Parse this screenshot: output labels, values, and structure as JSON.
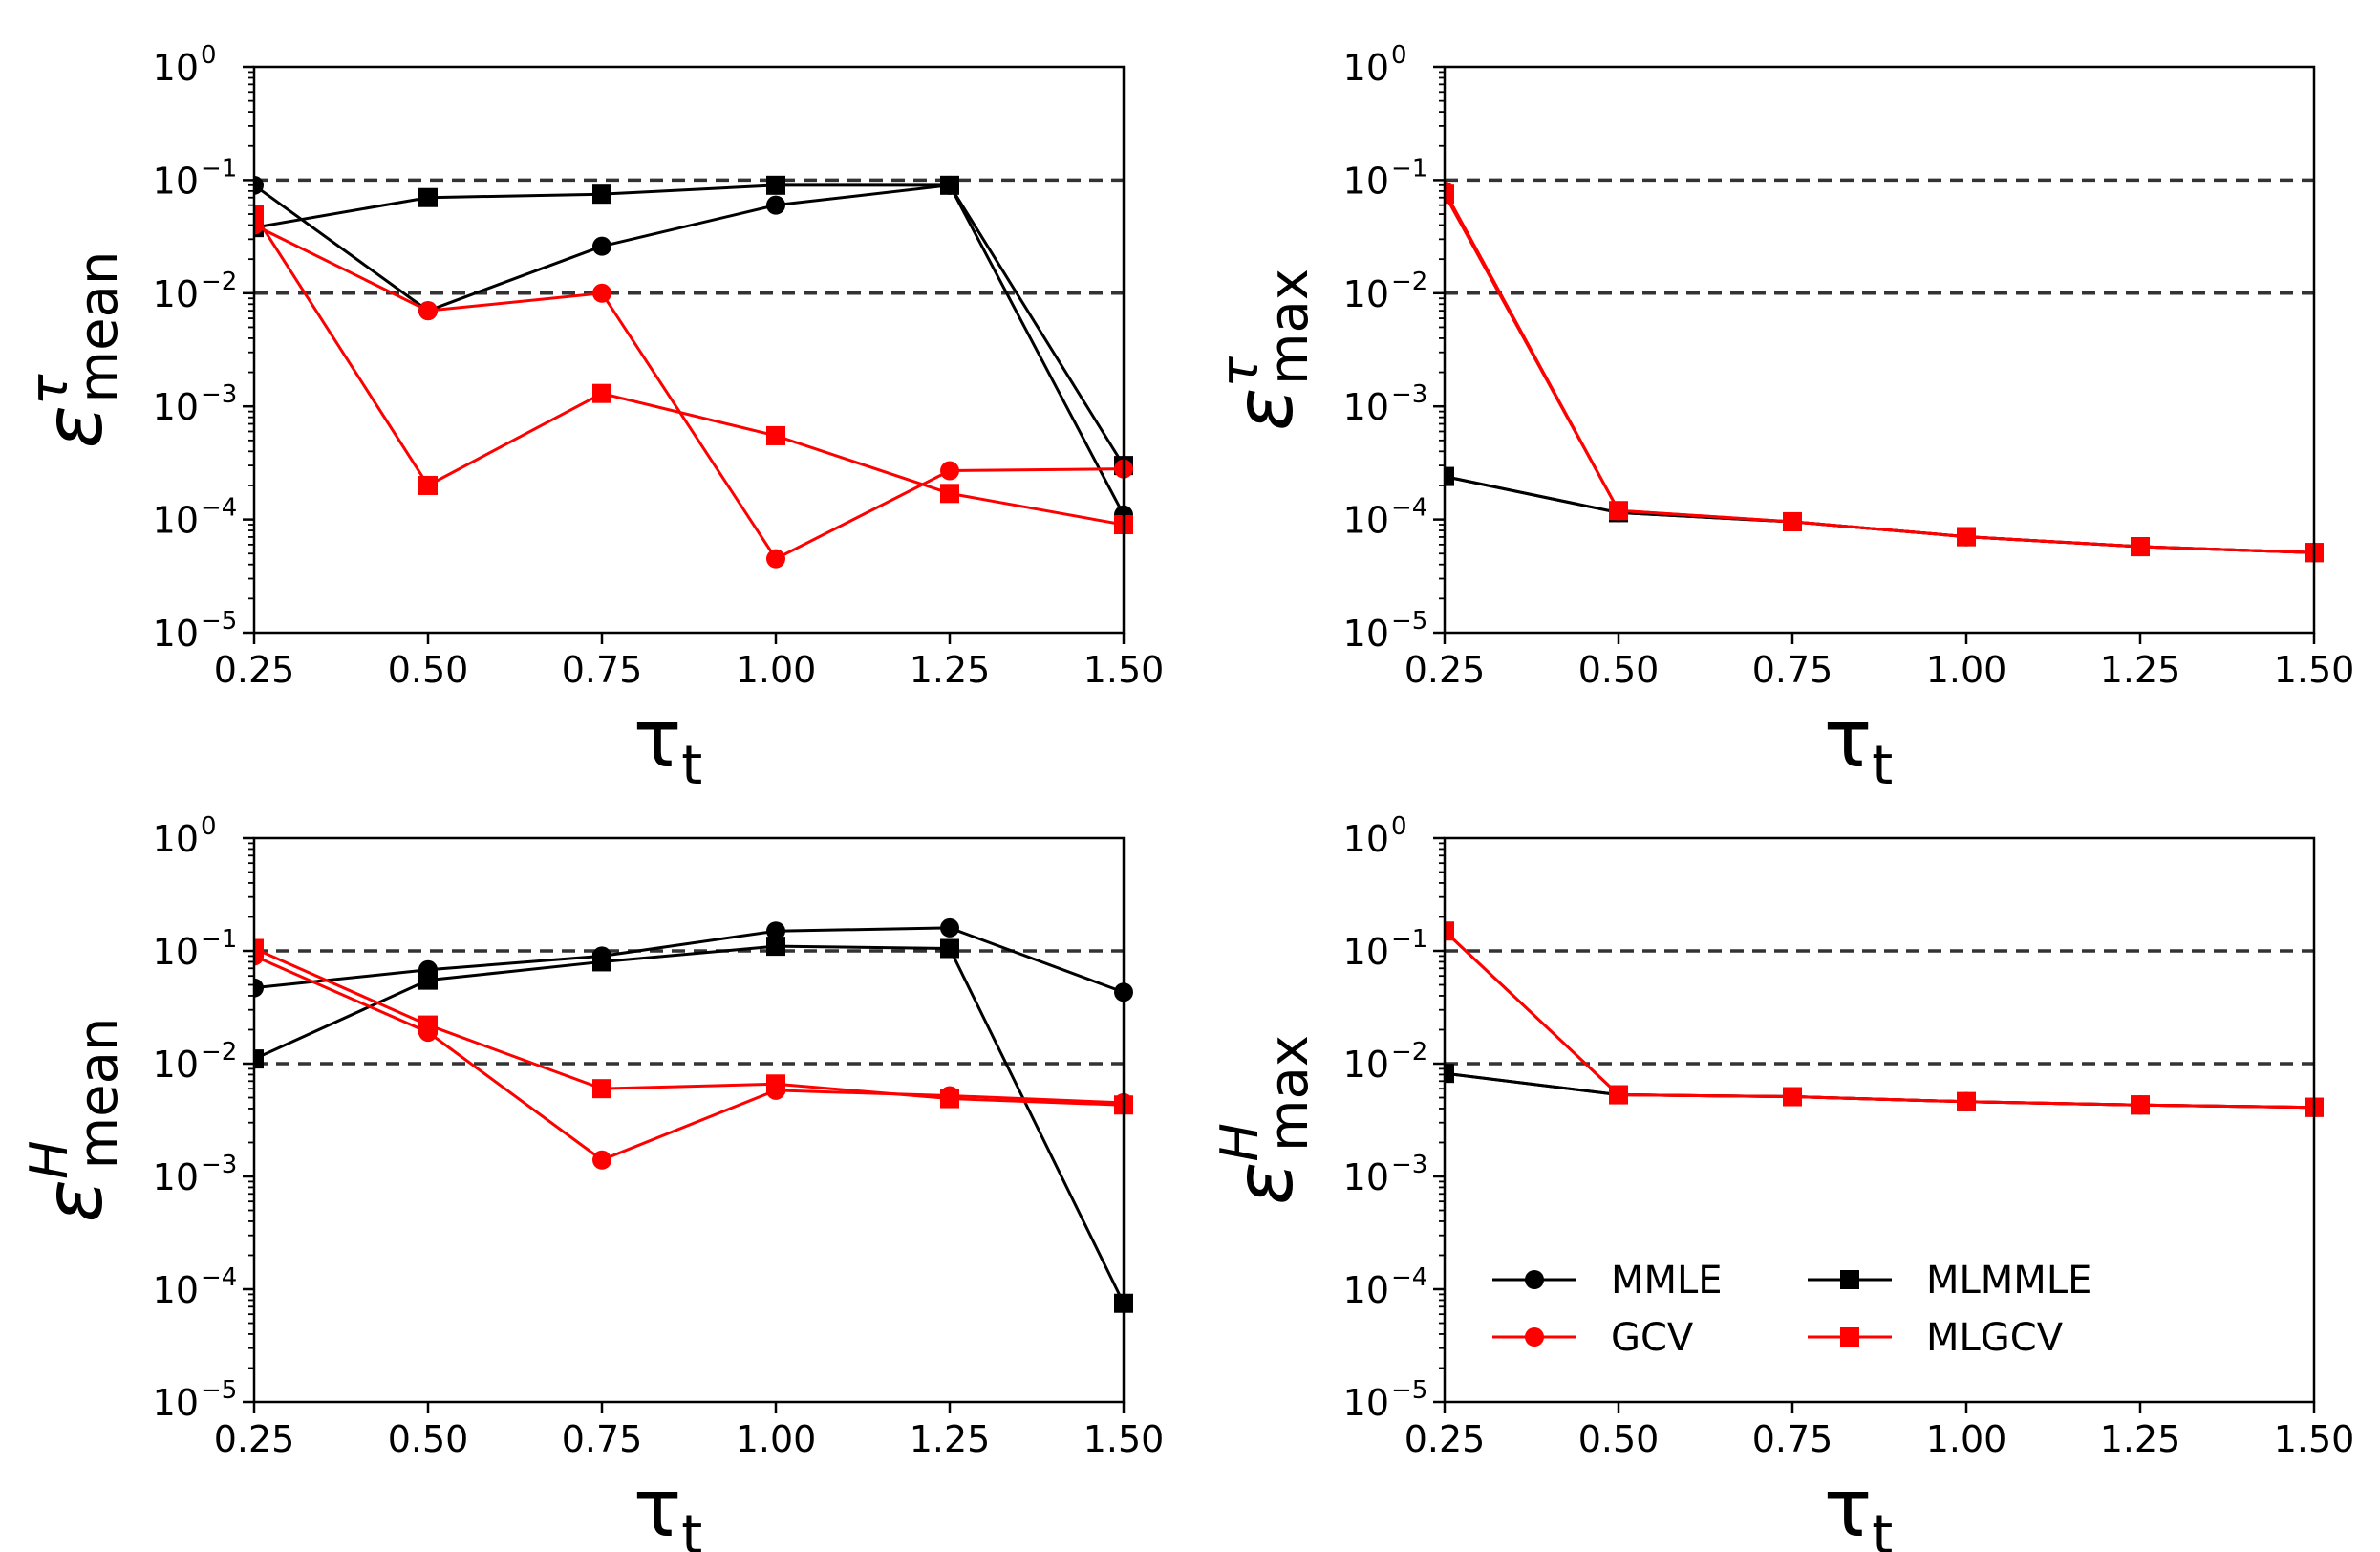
{
  "chart_data": [
    {
      "type": "line",
      "panel": "top-left",
      "ylabel": {
        "symbol": "ε",
        "sup": "τ",
        "sub": "mean"
      },
      "xlabel": {
        "symbol": "τ",
        "sub": "t"
      },
      "yscale": "log",
      "ylim": [
        1e-05,
        1
      ],
      "xlim": [
        0.25,
        1.5
      ],
      "xticks": [
        "0.25",
        "0.50",
        "0.75",
        "1.00",
        "1.25",
        "1.50"
      ],
      "yticks": [
        {
          "base": "10",
          "exp": "0"
        },
        {
          "base": "10",
          "exp": "−1"
        },
        {
          "base": "10",
          "exp": "−2"
        },
        {
          "base": "10",
          "exp": "−3"
        },
        {
          "base": "10",
          "exp": "−4"
        },
        {
          "base": "10",
          "exp": "−5"
        }
      ],
      "hlines": [
        0.1,
        0.01
      ],
      "x": [
        0.25,
        0.5,
        0.75,
        1.0,
        1.25,
        1.5
      ],
      "series": [
        {
          "name": "MMLE",
          "color": "#000000",
          "marker": "circle",
          "values": [
            0.09,
            0.007,
            0.026,
            0.06,
            0.09,
            0.00011
          ]
        },
        {
          "name": "MLMMLE",
          "color": "#000000",
          "marker": "square",
          "values": [
            0.038,
            0.07,
            0.075,
            0.09,
            0.09,
            0.0003
          ]
        },
        {
          "name": "GCV",
          "color": "#ff0000",
          "marker": "circle",
          "values": [
            0.04,
            0.007,
            0.01,
            4.5e-05,
            0.00027,
            0.00028
          ]
        },
        {
          "name": "MLGCV",
          "color": "#ff0000",
          "marker": "square",
          "values": [
            0.05,
            0.0002,
            0.0013,
            0.00055,
            0.00017,
            9e-05
          ]
        }
      ]
    },
    {
      "type": "line",
      "panel": "top-right",
      "ylabel": {
        "symbol": "ε",
        "sup": "τ",
        "sub": "max"
      },
      "xlabel": {
        "symbol": "τ",
        "sub": "t"
      },
      "yscale": "log",
      "ylim": [
        1e-05,
        1
      ],
      "xlim": [
        0.25,
        1.5
      ],
      "xticks": [
        "0.25",
        "0.50",
        "0.75",
        "1.00",
        "1.25",
        "1.50"
      ],
      "yticks": [
        {
          "base": "10",
          "exp": "0"
        },
        {
          "base": "10",
          "exp": "−1"
        },
        {
          "base": "10",
          "exp": "−2"
        },
        {
          "base": "10",
          "exp": "−3"
        },
        {
          "base": "10",
          "exp": "−4"
        },
        {
          "base": "10",
          "exp": "−5"
        }
      ],
      "hlines": [
        0.1,
        0.01
      ],
      "x": [
        0.25,
        0.5,
        0.75,
        1.0,
        1.25,
        1.5
      ],
      "series": [
        {
          "name": "MMLE",
          "color": "#000000",
          "marker": "circle",
          "values": [
            0.00024,
            0.000115,
            9.55e-05,
            7.05e-05,
            5.75e-05,
            5.1e-05
          ]
        },
        {
          "name": "MLMMLE",
          "color": "#000000",
          "marker": "square",
          "values": [
            0.00024,
            0.000115,
            9.55e-05,
            7.05e-05,
            5.75e-05,
            5.1e-05
          ]
        },
        {
          "name": "GCV",
          "color": "#ff0000",
          "marker": "circle",
          "values": [
            0.08,
            0.00012,
            9.55e-05,
            7.05e-05,
            5.75e-05,
            5.1e-05
          ]
        },
        {
          "name": "MLGCV",
          "color": "#ff0000",
          "marker": "square",
          "values": [
            0.075,
            0.00012,
            9.55e-05,
            7.05e-05,
            5.75e-05,
            5.1e-05
          ]
        }
      ]
    },
    {
      "type": "line",
      "panel": "bottom-left",
      "ylabel": {
        "symbol": "ε",
        "sup": "H",
        "sub": "mean"
      },
      "xlabel": {
        "symbol": "τ",
        "sub": "t"
      },
      "yscale": "log",
      "ylim": [
        1e-05,
        1
      ],
      "xlim": [
        0.25,
        1.5
      ],
      "xticks": [
        "0.25",
        "0.50",
        "0.75",
        "1.00",
        "1.25",
        "1.50"
      ],
      "yticks": [
        {
          "base": "10",
          "exp": "0"
        },
        {
          "base": "10",
          "exp": "−1"
        },
        {
          "base": "10",
          "exp": "−2"
        },
        {
          "base": "10",
          "exp": "−3"
        },
        {
          "base": "10",
          "exp": "−4"
        },
        {
          "base": "10",
          "exp": "−5"
        }
      ],
      "hlines": [
        0.1,
        0.01
      ],
      "x": [
        0.25,
        0.5,
        0.75,
        1.0,
        1.25,
        1.5
      ],
      "series": [
        {
          "name": "MMLE",
          "color": "#000000",
          "marker": "circle",
          "values": [
            0.047,
            0.068,
            0.09,
            0.15,
            0.16,
            0.043
          ]
        },
        {
          "name": "MLMMLE",
          "color": "#000000",
          "marker": "square",
          "values": [
            0.011,
            0.055,
            0.08,
            0.11,
            0.105,
            7.5e-05
          ]
        },
        {
          "name": "GCV",
          "color": "#ff0000",
          "marker": "circle",
          "values": [
            0.09,
            0.019,
            0.0014,
            0.0058,
            0.0052,
            0.0045
          ]
        },
        {
          "name": "MLGCV",
          "color": "#ff0000",
          "marker": "square",
          "values": [
            0.105,
            0.022,
            0.006,
            0.0066,
            0.0049,
            0.0043
          ]
        }
      ]
    },
    {
      "type": "line",
      "panel": "bottom-right",
      "ylabel": {
        "symbol": "ε",
        "sup": "H",
        "sub": "max"
      },
      "xlabel": {
        "symbol": "τ",
        "sub": "t"
      },
      "yscale": "log",
      "ylim": [
        1e-05,
        1
      ],
      "xlim": [
        0.25,
        1.5
      ],
      "xticks": [
        "0.25",
        "0.50",
        "0.75",
        "1.00",
        "1.25",
        "1.50"
      ],
      "yticks": [
        {
          "base": "10",
          "exp": "0"
        },
        {
          "base": "10",
          "exp": "−1"
        },
        {
          "base": "10",
          "exp": "−2"
        },
        {
          "base": "10",
          "exp": "−3"
        },
        {
          "base": "10",
          "exp": "−4"
        },
        {
          "base": "10",
          "exp": "−5"
        }
      ],
      "hlines": [
        0.1,
        0.01
      ],
      "x": [
        0.25,
        0.5,
        0.75,
        1.0,
        1.25,
        1.5
      ],
      "series": [
        {
          "name": "MMLE",
          "color": "#000000",
          "marker": "circle",
          "values": [
            0.0082,
            0.0053,
            0.0051,
            0.0046,
            0.0043,
            0.0041
          ]
        },
        {
          "name": "MLMMLE",
          "color": "#000000",
          "marker": "square",
          "values": [
            0.0082,
            0.0053,
            0.0051,
            0.0046,
            0.0043,
            0.0041
          ]
        },
        {
          "name": "GCV",
          "color": "#ff0000",
          "marker": "circle",
          "values": [
            0.15,
            0.0053,
            0.0051,
            0.0046,
            0.0043,
            0.0041
          ]
        },
        {
          "name": "MLGCV",
          "color": "#ff0000",
          "marker": "square",
          "values": [
            0.15,
            0.0053,
            0.0051,
            0.0046,
            0.0043,
            0.0041
          ]
        }
      ],
      "legend": {
        "placement": "bottom-left",
        "columns": 2,
        "entries": [
          {
            "label": "MMLE",
            "color": "#000000",
            "marker": "circle"
          },
          {
            "label": "MLMMLE",
            "color": "#000000",
            "marker": "square"
          },
          {
            "label": "GCV",
            "color": "#ff0000",
            "marker": "circle"
          },
          {
            "label": "MLGCV",
            "color": "#ff0000",
            "marker": "square"
          }
        ]
      }
    }
  ]
}
